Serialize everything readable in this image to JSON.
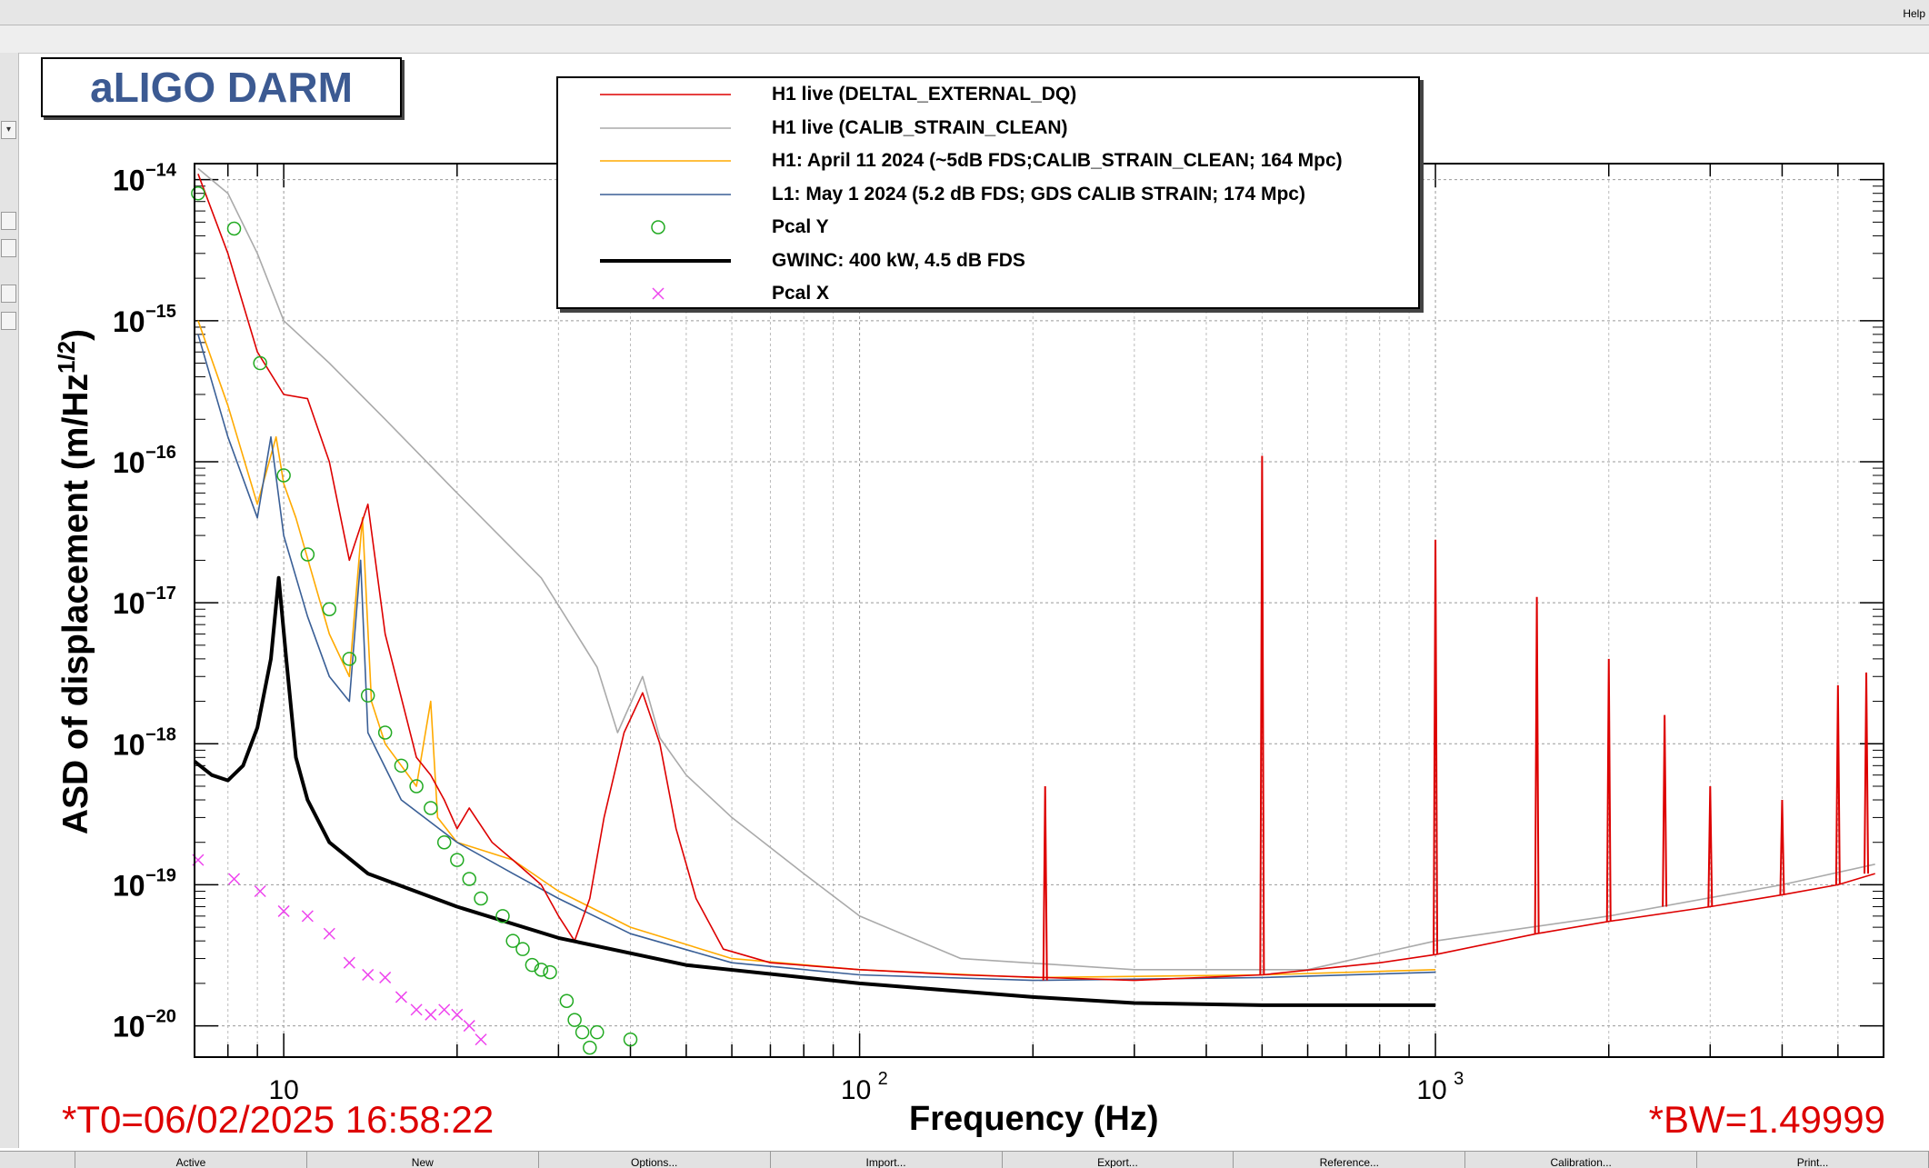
{
  "window": {
    "menu_help": "Help"
  },
  "plot": {
    "title": "aLIGO DARM",
    "footer_left": "*T0=06/02/2025 16:58:22",
    "footer_right": "*BW=1.49999"
  },
  "tabs": [
    {
      "label": "Active"
    },
    {
      "label": "New"
    },
    {
      "label": "Options..."
    },
    {
      "label": "Import..."
    },
    {
      "label": "Export..."
    },
    {
      "label": "Reference..."
    },
    {
      "label": "Calibration..."
    },
    {
      "label": "Print..."
    }
  ],
  "legend": [
    {
      "label": "H1 live (DELTAL_EXTERNAL_DQ)",
      "color": "#dd0000",
      "style": "line"
    },
    {
      "label": "H1 live (CALIB_STRAIN_CLEAN)",
      "color": "#aaaaaa",
      "style": "line"
    },
    {
      "label": "H1: April 11 2024 (~5dB FDS;CALIB_STRAIN_CLEAN; 164 Mpc)",
      "color": "#ffaa00",
      "style": "line"
    },
    {
      "label": "L1: May 1 2024 (5.2 dB FDS; GDS CALIB STRAIN; 174 Mpc)",
      "color": "#3a5f96",
      "style": "line"
    },
    {
      "label": "Pcal Y",
      "color": "#22aa22",
      "style": "circle"
    },
    {
      "label": "GWINC: 400 kW, 4.5 dB FDS",
      "color": "#000000",
      "style": "thick"
    },
    {
      "label": "Pcal X",
      "color": "#ee44ee",
      "style": "cross"
    }
  ],
  "chart_data": {
    "type": "line",
    "title": "aLIGO DARM",
    "xlabel": "Frequency (Hz)",
    "ylabel": "ASD of displacement (m/Hz^1/2)",
    "x_scale": "log",
    "y_scale": "log",
    "xlim": [
      7,
      6000
    ],
    "ylim": [
      6e-21,
      1.3e-14
    ],
    "grid": true,
    "legend_position": "top-center",
    "x_tick_labels": [
      "10",
      "10^2",
      "10^3"
    ],
    "x_ticks": [
      10,
      100,
      1000
    ],
    "y_ticks": [
      1e-14,
      1e-15,
      1e-16,
      1e-17,
      1e-18,
      1e-19,
      1e-20
    ],
    "y_tick_labels": [
      {
        "base": "10",
        "exp": "−14"
      },
      {
        "base": "10",
        "exp": "−15"
      },
      {
        "base": "10",
        "exp": "−16"
      },
      {
        "base": "10",
        "exp": "−17"
      },
      {
        "base": "10",
        "exp": "−18"
      },
      {
        "base": "10",
        "exp": "−19"
      },
      {
        "base": "10",
        "exp": "−20"
      }
    ],
    "series": [
      {
        "name": "H1 live (CALIB_STRAIN_CLEAN)",
        "color": "#aaaaaa",
        "points": [
          [
            7.1,
            1.2e-14
          ],
          [
            8,
            8e-15
          ],
          [
            9,
            3e-15
          ],
          [
            10,
            1e-15
          ],
          [
            12,
            5e-16
          ],
          [
            15,
            2e-16
          ],
          [
            20,
            6e-17
          ],
          [
            28,
            1.5e-17
          ],
          [
            35,
            3.5e-18
          ],
          [
            38,
            1.2e-18
          ],
          [
            42,
            3e-18
          ],
          [
            45,
            1.1e-18
          ],
          [
            50,
            6e-19
          ],
          [
            60,
            3e-19
          ],
          [
            80,
            1.2e-19
          ],
          [
            100,
            6e-20
          ],
          [
            150,
            3e-20
          ],
          [
            300,
            2.5e-20
          ],
          [
            600,
            2.5e-20
          ],
          [
            1000,
            4e-20
          ],
          [
            2000,
            6e-20
          ],
          [
            4000,
            1e-19
          ],
          [
            5800,
            1.4e-19
          ]
        ]
      },
      {
        "name": "H1: April 11 2024 (~5dB FDS;CALIB_STRAIN_CLEAN; 164 Mpc)",
        "color": "#ffaa00",
        "points": [
          [
            7.1,
            1e-15
          ],
          [
            8,
            2.5e-16
          ],
          [
            9,
            5e-17
          ],
          [
            9.7,
            1.5e-16
          ],
          [
            10,
            7e-17
          ],
          [
            10.5,
            4e-17
          ],
          [
            12,
            6e-18
          ],
          [
            13,
            3e-18
          ],
          [
            13.7,
            4e-17
          ],
          [
            14.2,
            2e-18
          ],
          [
            15,
            1e-18
          ],
          [
            17,
            5e-19
          ],
          [
            18,
            2e-18
          ],
          [
            18.5,
            3e-19
          ],
          [
            20,
            2e-19
          ],
          [
            25,
            1.5e-19
          ],
          [
            30,
            9e-20
          ],
          [
            40,
            5e-20
          ],
          [
            60,
            3e-20
          ],
          [
            100,
            2.5e-20
          ],
          [
            200,
            2.2e-20
          ],
          [
            500,
            2.3e-20
          ],
          [
            1000,
            2.5e-20
          ]
        ]
      },
      {
        "name": "L1: May 1 2024 (5.2 dB FDS; GDS CALIB STRAIN; 174 Mpc)",
        "color": "#3a5f96",
        "points": [
          [
            7.1,
            8e-16
          ],
          [
            8,
            1.5e-16
          ],
          [
            9,
            4e-17
          ],
          [
            9.5,
            1.5e-16
          ],
          [
            10,
            3e-17
          ],
          [
            11,
            8e-18
          ],
          [
            12,
            3e-18
          ],
          [
            13,
            2e-18
          ],
          [
            13.6,
            2e-17
          ],
          [
            14,
            1.2e-18
          ],
          [
            16,
            4e-19
          ],
          [
            20,
            2e-19
          ],
          [
            25,
            1.2e-19
          ],
          [
            30,
            8e-20
          ],
          [
            40,
            4.5e-20
          ],
          [
            60,
            2.8e-20
          ],
          [
            100,
            2.3e-20
          ],
          [
            200,
            2.1e-20
          ],
          [
            500,
            2.2e-20
          ],
          [
            1000,
            2.4e-20
          ]
        ]
      },
      {
        "name": "H1 live (DELTAL_EXTERNAL_DQ)",
        "color": "#dd0000",
        "points": [
          [
            7.1,
            1.1e-14
          ],
          [
            8,
            3e-15
          ],
          [
            9,
            6e-16
          ],
          [
            10,
            3e-16
          ],
          [
            11,
            2.8e-16
          ],
          [
            12,
            1e-16
          ],
          [
            13,
            2e-17
          ],
          [
            14,
            5e-17
          ],
          [
            15,
            6e-18
          ],
          [
            17,
            8e-19
          ],
          [
            18,
            6e-19
          ],
          [
            19,
            4e-19
          ],
          [
            20,
            2.5e-19
          ],
          [
            21,
            3.5e-19
          ],
          [
            23,
            2e-19
          ],
          [
            25,
            1.5e-19
          ],
          [
            28,
            1e-19
          ],
          [
            30,
            6e-20
          ],
          [
            32,
            4e-20
          ],
          [
            34,
            8e-20
          ],
          [
            36,
            3e-19
          ],
          [
            39,
            1.2e-18
          ],
          [
            42,
            2.3e-18
          ],
          [
            45,
            1e-18
          ],
          [
            48,
            2.5e-19
          ],
          [
            52,
            8e-20
          ],
          [
            58,
            3.5e-20
          ],
          [
            70,
            2.8e-20
          ],
          [
            100,
            2.5e-20
          ],
          [
            150,
            2.3e-20
          ],
          [
            300,
            2.1e-20
          ],
          [
            500,
            2.3e-20
          ],
          [
            800,
            2.8e-20
          ],
          [
            1000,
            3.2e-20
          ],
          [
            1500,
            4.5e-20
          ],
          [
            2000,
            5.5e-20
          ],
          [
            3000,
            7e-20
          ],
          [
            4000,
            8.5e-20
          ],
          [
            5000,
            1e-19
          ],
          [
            5800,
            1.2e-19
          ]
        ],
        "peaks": [
          [
            210,
            5e-19
          ],
          [
            500,
            1.1e-16
          ],
          [
            1000,
            2.8e-17
          ],
          [
            1500,
            1.1e-17
          ],
          [
            2000,
            4e-18
          ],
          [
            2500,
            1.6e-18
          ],
          [
            3000,
            5e-19
          ],
          [
            4000,
            4e-19
          ],
          [
            5000,
            2.6e-18
          ],
          [
            5600,
            3.2e-18
          ]
        ]
      },
      {
        "name": "GWINC: 400 kW, 4.5 dB FDS",
        "color": "#000000",
        "points": [
          [
            7,
            7.5e-19
          ],
          [
            7.5,
            6e-19
          ],
          [
            8,
            5.5e-19
          ],
          [
            8.5,
            7e-19
          ],
          [
            9,
            1.3e-18
          ],
          [
            9.5,
            4e-18
          ],
          [
            9.8,
            1.5e-17
          ],
          [
            10.1,
            4e-18
          ],
          [
            10.5,
            8e-19
          ],
          [
            11,
            4e-19
          ],
          [
            12,
            2e-19
          ],
          [
            14,
            1.2e-19
          ],
          [
            20,
            7e-20
          ],
          [
            30,
            4.2e-20
          ],
          [
            50,
            2.7e-20
          ],
          [
            100,
            2e-20
          ],
          [
            200,
            1.6e-20
          ],
          [
            300,
            1.45e-20
          ],
          [
            500,
            1.4e-20
          ],
          [
            1000,
            1.4e-20
          ]
        ]
      },
      {
        "name": "Pcal Y",
        "color": "#22aa22",
        "marker": "circle",
        "points": [
          [
            7.1,
            8e-15
          ],
          [
            8.2,
            4.5e-15
          ],
          [
            9.1,
            5e-16
          ],
          [
            10,
            8e-17
          ],
          [
            11,
            2.2e-17
          ],
          [
            12,
            9e-18
          ],
          [
            13,
            4e-18
          ],
          [
            14,
            2.2e-18
          ],
          [
            15,
            1.2e-18
          ],
          [
            16,
            7e-19
          ],
          [
            17,
            5e-19
          ],
          [
            18,
            3.5e-19
          ],
          [
            19,
            2e-19
          ],
          [
            20,
            1.5e-19
          ],
          [
            21,
            1.1e-19
          ],
          [
            22,
            8e-20
          ],
          [
            24,
            6e-20
          ],
          [
            25,
            4e-20
          ],
          [
            26,
            3.5e-20
          ],
          [
            27,
            2.7e-20
          ],
          [
            28,
            2.5e-20
          ],
          [
            29,
            2.4e-20
          ],
          [
            31,
            1.5e-20
          ],
          [
            32,
            1.1e-20
          ],
          [
            33,
            9e-21
          ],
          [
            34,
            7e-21
          ],
          [
            35,
            9e-21
          ],
          [
            40,
            8e-21
          ]
        ]
      },
      {
        "name": "Pcal X",
        "color": "#ee44ee",
        "marker": "cross",
        "points": [
          [
            7.1,
            1.5e-19
          ],
          [
            8.2,
            1.1e-19
          ],
          [
            9.1,
            9e-20
          ],
          [
            10,
            6.5e-20
          ],
          [
            11,
            6e-20
          ],
          [
            12,
            4.5e-20
          ],
          [
            13,
            2.8e-20
          ],
          [
            14,
            2.3e-20
          ],
          [
            15,
            2.2e-20
          ],
          [
            16,
            1.6e-20
          ],
          [
            17,
            1.3e-20
          ],
          [
            18,
            1.2e-20
          ],
          [
            19,
            1.3e-20
          ],
          [
            20,
            1.2e-20
          ],
          [
            21,
            1e-20
          ],
          [
            22,
            8e-21
          ]
        ]
      }
    ]
  }
}
